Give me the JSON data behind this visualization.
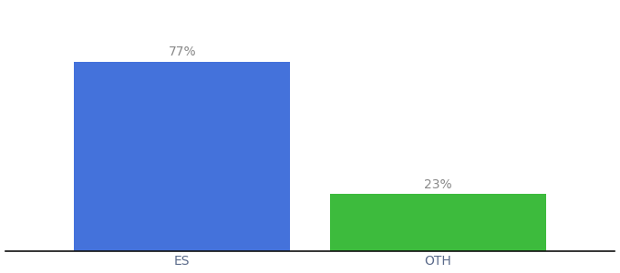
{
  "categories": [
    "ES",
    "OTH"
  ],
  "values": [
    77,
    23
  ],
  "bar_colors": [
    "#4472db",
    "#3dbb3d"
  ],
  "label_texts": [
    "77%",
    "23%"
  ],
  "label_color": "#888888",
  "xlabel": "",
  "ylabel": "",
  "ylim": [
    0,
    100
  ],
  "bar_width": 0.55,
  "background_color": "#ffffff",
  "tick_label_fontsize": 10,
  "bar_label_fontsize": 10,
  "x_positions": [
    0.35,
    1.0
  ],
  "xlim": [
    -0.1,
    1.45
  ]
}
